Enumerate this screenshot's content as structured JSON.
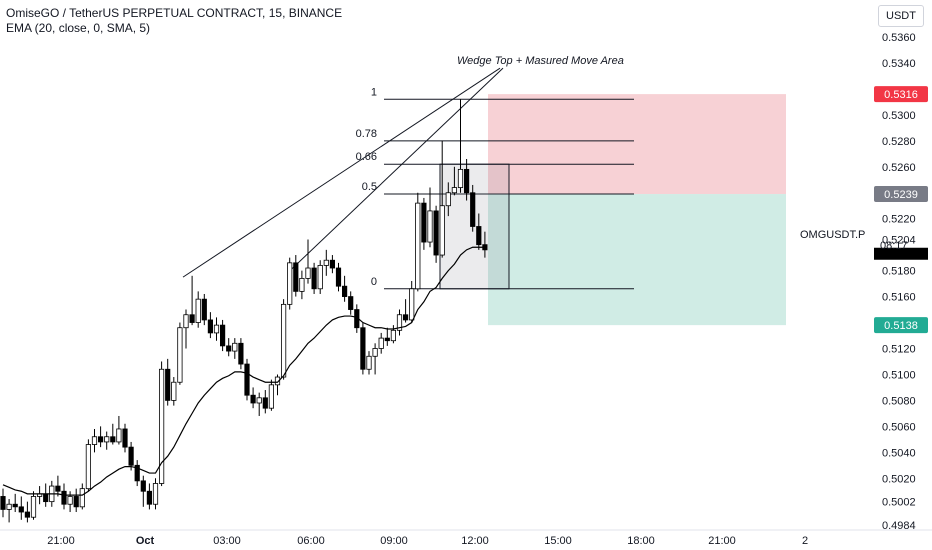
{
  "header": {
    "title": "OmiseGO / TetherUS PERPETUAL CONTRACT, 15, BINANCE",
    "indicator": "EMA (20, close, 0, SMA, 5)",
    "currency": "USDT"
  },
  "annotation": "Wedge Top + Masured Move Area",
  "symbol_label": "OMGUSDT.P",
  "countdown": "08:17",
  "colors": {
    "up": "#ffffff",
    "down": "#000000",
    "ema": "#000000",
    "stop_zone": "#f7d1d5",
    "target_zone": "#d0ece5",
    "red_badge": "#f23645",
    "green_badge": "#22ab94",
    "gray_badge": "#787b86"
  },
  "chart_data": {
    "type": "candlestick",
    "yaxis_ticks": [
      "0.5360",
      "0.5340",
      "0.5300",
      "0.5280",
      "0.5260",
      "0.5220",
      "0.5204",
      "0.5180",
      "0.5160",
      "0.5140",
      "0.5120",
      "0.5100",
      "0.5080",
      "0.5060",
      "0.5040",
      "0.5020",
      "0.5002",
      "0.4984"
    ],
    "xaxis_ticks": [
      "21:00",
      "Oct",
      "03:00",
      "06:00",
      "09:00",
      "12:00",
      "15:00",
      "18:00",
      "21:00",
      "2"
    ],
    "price_badges": [
      {
        "label": "0.5316",
        "value": 0.5316,
        "color": "#f23645"
      },
      {
        "label": "0.5239",
        "value": 0.5239,
        "color": "#787b86"
      },
      {
        "label": "0.5138",
        "value": 0.5138,
        "color": "#22ab94"
      }
    ],
    "candles": [
      [
        0.5006,
        0.5012,
        0.499,
        0.4996
      ],
      [
        0.4996,
        0.5004,
        0.4986,
        0.5
      ],
      [
        0.5,
        0.5008,
        0.4994,
        0.4998
      ],
      [
        0.4998,
        0.5006,
        0.4988,
        0.4994
      ],
      [
        0.4994,
        0.5002,
        0.4986,
        0.499
      ],
      [
        0.499,
        0.501,
        0.4988,
        0.5006
      ],
      [
        0.5006,
        0.5014,
        0.5,
        0.5008
      ],
      [
        0.5008,
        0.5016,
        0.4998,
        0.5002
      ],
      [
        0.5002,
        0.5018,
        0.4998,
        0.5014
      ],
      [
        0.5014,
        0.5022,
        0.5006,
        0.501
      ],
      [
        0.501,
        0.5016,
        0.4996,
        0.5
      ],
      [
        0.5,
        0.501,
        0.4994,
        0.5006
      ],
      [
        0.5006,
        0.5012,
        0.4994,
        0.4998
      ],
      [
        0.4998,
        0.5016,
        0.4996,
        0.5012
      ],
      [
        0.5012,
        0.505,
        0.501,
        0.5046
      ],
      [
        0.5046,
        0.5058,
        0.504,
        0.5052
      ],
      [
        0.5052,
        0.506,
        0.5044,
        0.5048
      ],
      [
        0.5048,
        0.5056,
        0.5042,
        0.5052
      ],
      [
        0.5052,
        0.5062,
        0.5046,
        0.5048
      ],
      [
        0.5048,
        0.5068,
        0.5046,
        0.5058
      ],
      [
        0.5058,
        0.5062,
        0.504,
        0.5044
      ],
      [
        0.5044,
        0.5048,
        0.5026,
        0.503
      ],
      [
        0.503,
        0.5034,
        0.5014,
        0.5018
      ],
      [
        0.5018,
        0.5022,
        0.4998,
        0.501
      ],
      [
        0.501,
        0.5016,
        0.4996,
        0.5
      ],
      [
        0.5,
        0.502,
        0.4996,
        0.5016
      ],
      [
        0.5016,
        0.511,
        0.5014,
        0.5104
      ],
      [
        0.5104,
        0.5112,
        0.5076,
        0.508
      ],
      [
        0.508,
        0.5098,
        0.5076,
        0.5094
      ],
      [
        0.5094,
        0.514,
        0.5092,
        0.5136
      ],
      [
        0.5136,
        0.515,
        0.512,
        0.5146
      ],
      [
        0.5146,
        0.5176,
        0.5138,
        0.514
      ],
      [
        0.514,
        0.5164,
        0.5136,
        0.5158
      ],
      [
        0.5158,
        0.5162,
        0.5138,
        0.5142
      ],
      [
        0.5142,
        0.5148,
        0.5128,
        0.5132
      ],
      [
        0.5132,
        0.5144,
        0.5126,
        0.5138
      ],
      [
        0.5138,
        0.5142,
        0.5118,
        0.5122
      ],
      [
        0.5122,
        0.5128,
        0.5114,
        0.5118
      ],
      [
        0.5118,
        0.5128,
        0.5112,
        0.5124
      ],
      [
        0.5124,
        0.5128,
        0.5104,
        0.5108
      ],
      [
        0.5108,
        0.5112,
        0.508,
        0.5084
      ],
      [
        0.5084,
        0.509,
        0.5074,
        0.5078
      ],
      [
        0.5078,
        0.5086,
        0.5068,
        0.5082
      ],
      [
        0.5082,
        0.5088,
        0.507,
        0.5074
      ],
      [
        0.5074,
        0.5096,
        0.5072,
        0.5092
      ],
      [
        0.5092,
        0.51,
        0.5084,
        0.5098
      ],
      [
        0.5098,
        0.5158,
        0.5096,
        0.5154
      ],
      [
        0.5154,
        0.519,
        0.515,
        0.5186
      ],
      [
        0.5186,
        0.5192,
        0.516,
        0.5164
      ],
      [
        0.5164,
        0.518,
        0.5158,
        0.5174
      ],
      [
        0.5174,
        0.5204,
        0.517,
        0.5182
      ],
      [
        0.5182,
        0.5186,
        0.5162,
        0.5166
      ],
      [
        0.5166,
        0.5188,
        0.5162,
        0.5184
      ],
      [
        0.5184,
        0.5196,
        0.5176,
        0.5188
      ],
      [
        0.5188,
        0.5192,
        0.5178,
        0.5182
      ],
      [
        0.5182,
        0.5186,
        0.5164,
        0.5168
      ],
      [
        0.5168,
        0.5176,
        0.5156,
        0.516
      ],
      [
        0.516,
        0.5164,
        0.5146,
        0.515
      ],
      [
        0.515,
        0.5154,
        0.5132,
        0.5136
      ],
      [
        0.5136,
        0.514,
        0.51,
        0.5104
      ],
      [
        0.5104,
        0.5118,
        0.51,
        0.5114
      ],
      [
        0.5114,
        0.5124,
        0.51,
        0.512
      ],
      [
        0.512,
        0.5132,
        0.5116,
        0.5128
      ],
      [
        0.5128,
        0.5136,
        0.5122,
        0.5126
      ],
      [
        0.5126,
        0.5138,
        0.5124,
        0.5134
      ],
      [
        0.5134,
        0.515,
        0.513,
        0.5146
      ],
      [
        0.5146,
        0.5158,
        0.514,
        0.5142
      ],
      [
        0.5142,
        0.5172,
        0.514,
        0.5166
      ],
      [
        0.5166,
        0.524,
        0.5164,
        0.5232
      ],
      [
        0.5232,
        0.5236,
        0.5196,
        0.5202
      ],
      [
        0.5202,
        0.5244,
        0.5198,
        0.5226
      ],
      [
        0.5226,
        0.523,
        0.5186,
        0.5192
      ],
      [
        0.5192,
        0.528,
        0.519,
        0.523
      ],
      [
        0.523,
        0.5248,
        0.5222,
        0.524
      ],
      [
        0.524,
        0.526,
        0.5238,
        0.5244
      ],
      [
        0.5244,
        0.5312,
        0.524,
        0.5258
      ],
      [
        0.5258,
        0.5266,
        0.5234,
        0.524
      ],
      [
        0.524,
        0.5246,
        0.521,
        0.5214
      ],
      [
        0.5214,
        0.5224,
        0.5196,
        0.52
      ],
      [
        0.52,
        0.521,
        0.519,
        0.5196
      ]
    ],
    "ema": [
      0.5015,
      0.5013,
      0.5011,
      0.501,
      0.5008,
      0.5008,
      0.5008,
      0.5008,
      0.5008,
      0.5008,
      0.5007,
      0.5007,
      0.5007,
      0.5007,
      0.501,
      0.5014,
      0.5017,
      0.5021,
      0.5024,
      0.5027,
      0.5029,
      0.5029,
      0.5028,
      0.5026,
      0.5024,
      0.5024,
      0.5032,
      0.5037,
      0.5044,
      0.5053,
      0.5062,
      0.507,
      0.5078,
      0.5084,
      0.5089,
      0.5094,
      0.5097,
      0.5099,
      0.5102,
      0.5102,
      0.5101,
      0.5098,
      0.5096,
      0.5094,
      0.5094,
      0.5094,
      0.5099,
      0.5107,
      0.5112,
      0.5118,
      0.5124,
      0.5128,
      0.5133,
      0.5138,
      0.5142,
      0.5144,
      0.5145,
      0.5145,
      0.5144,
      0.514,
      0.5138,
      0.5136,
      0.5136,
      0.5135,
      0.5135,
      0.5136,
      0.5137,
      0.514,
      0.515,
      0.5156,
      0.5164,
      0.5167,
      0.5174,
      0.518,
      0.5185,
      0.5192,
      0.5196,
      0.5198,
      0.5198,
      0.5198
    ],
    "fib_levels": [
      {
        "label": "1",
        "value": 0.5312
      },
      {
        "label": "0.78",
        "value": 0.528
      },
      {
        "label": "0.66",
        "value": 0.5262
      },
      {
        "label": "0.5",
        "value": 0.5239
      },
      {
        "label": "0",
        "value": 0.5166
      }
    ],
    "zones": [
      {
        "name": "stop",
        "from": 0.5239,
        "to": 0.5316
      },
      {
        "name": "target",
        "from": 0.5138,
        "to": 0.5239
      }
    ]
  }
}
